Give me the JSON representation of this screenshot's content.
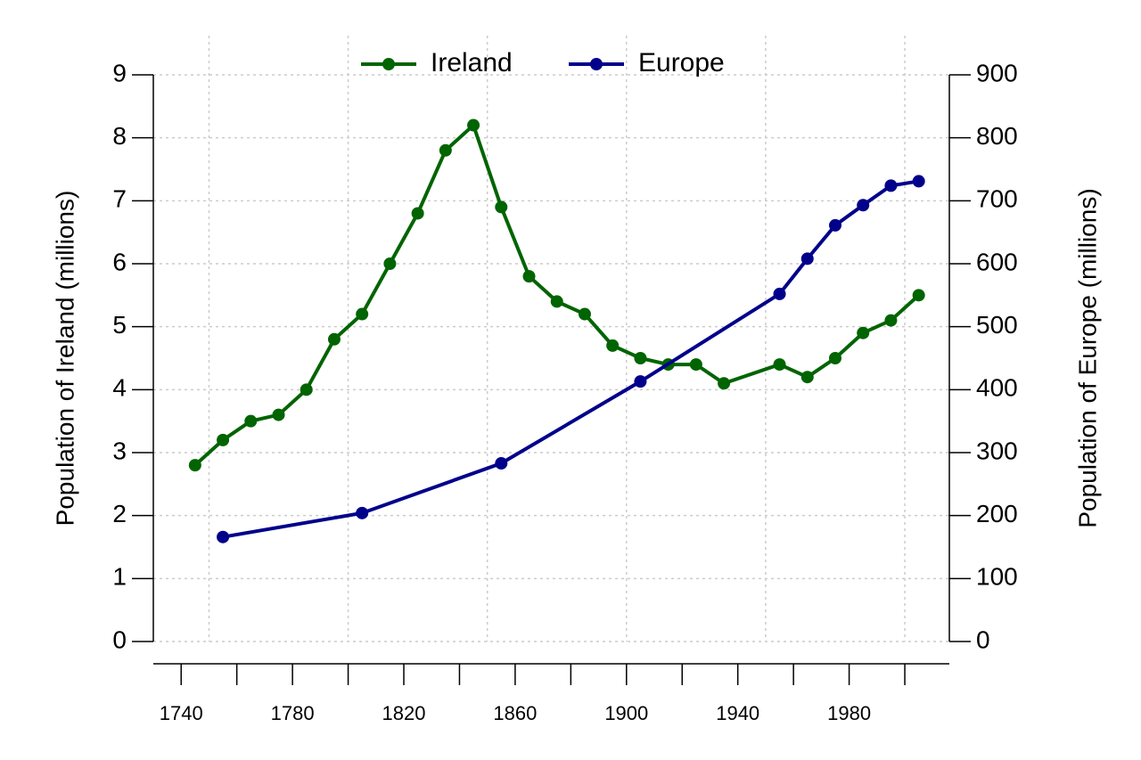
{
  "chart_data": {
    "type": "line",
    "xlim": [
      1730,
      2016
    ],
    "xticks": [
      1740,
      1780,
      1820,
      1860,
      1900,
      1940,
      1980
    ],
    "xminorticks": [
      1760,
      1800,
      1840,
      1880,
      1920,
      1960,
      2000
    ],
    "xgrid": [
      1750,
      1800,
      1850,
      1900,
      1950,
      2000
    ],
    "ylim": [
      0,
      9
    ],
    "yticks": [
      0,
      1,
      2,
      3,
      4,
      5,
      6,
      7,
      8,
      9
    ],
    "y2lim": [
      0,
      900
    ],
    "y2ticks": [
      0,
      100,
      200,
      300,
      400,
      500,
      600,
      700,
      800,
      900
    ],
    "ylabel": "Population of Ireland (millions)",
    "y2label": "Population of Europe (millions)",
    "ylabel_color": "#006400",
    "y2label_color": "#00008b",
    "grid": true,
    "series": [
      {
        "name": "Ireland",
        "color": "#006400",
        "x": [
          1745,
          1755,
          1765,
          1775,
          1785,
          1795,
          1805,
          1815,
          1825,
          1835,
          1845,
          1855,
          1865,
          1875,
          1885,
          1895,
          1905,
          1915,
          1925,
          1935,
          1955,
          1965,
          1975,
          1985,
          1995,
          2005
        ],
        "values": [
          2.8,
          3.2,
          3.5,
          3.6,
          4.0,
          4.8,
          5.2,
          6.0,
          6.8,
          7.8,
          8.2,
          6.9,
          5.8,
          5.4,
          5.2,
          4.7,
          4.5,
          4.4,
          4.4,
          4.1,
          4.4,
          4.2,
          4.5,
          4.9,
          5.1,
          5.5
        ]
      },
      {
        "name": "Europe",
        "color": "#00008b",
        "axis": "y2",
        "x": [
          1755,
          1805,
          1855,
          1905,
          1955,
          1965,
          1975,
          1985,
          1995,
          2005
        ],
        "values": [
          166,
          204,
          283,
          413,
          552,
          608,
          661,
          693,
          724,
          731
        ]
      }
    ]
  }
}
